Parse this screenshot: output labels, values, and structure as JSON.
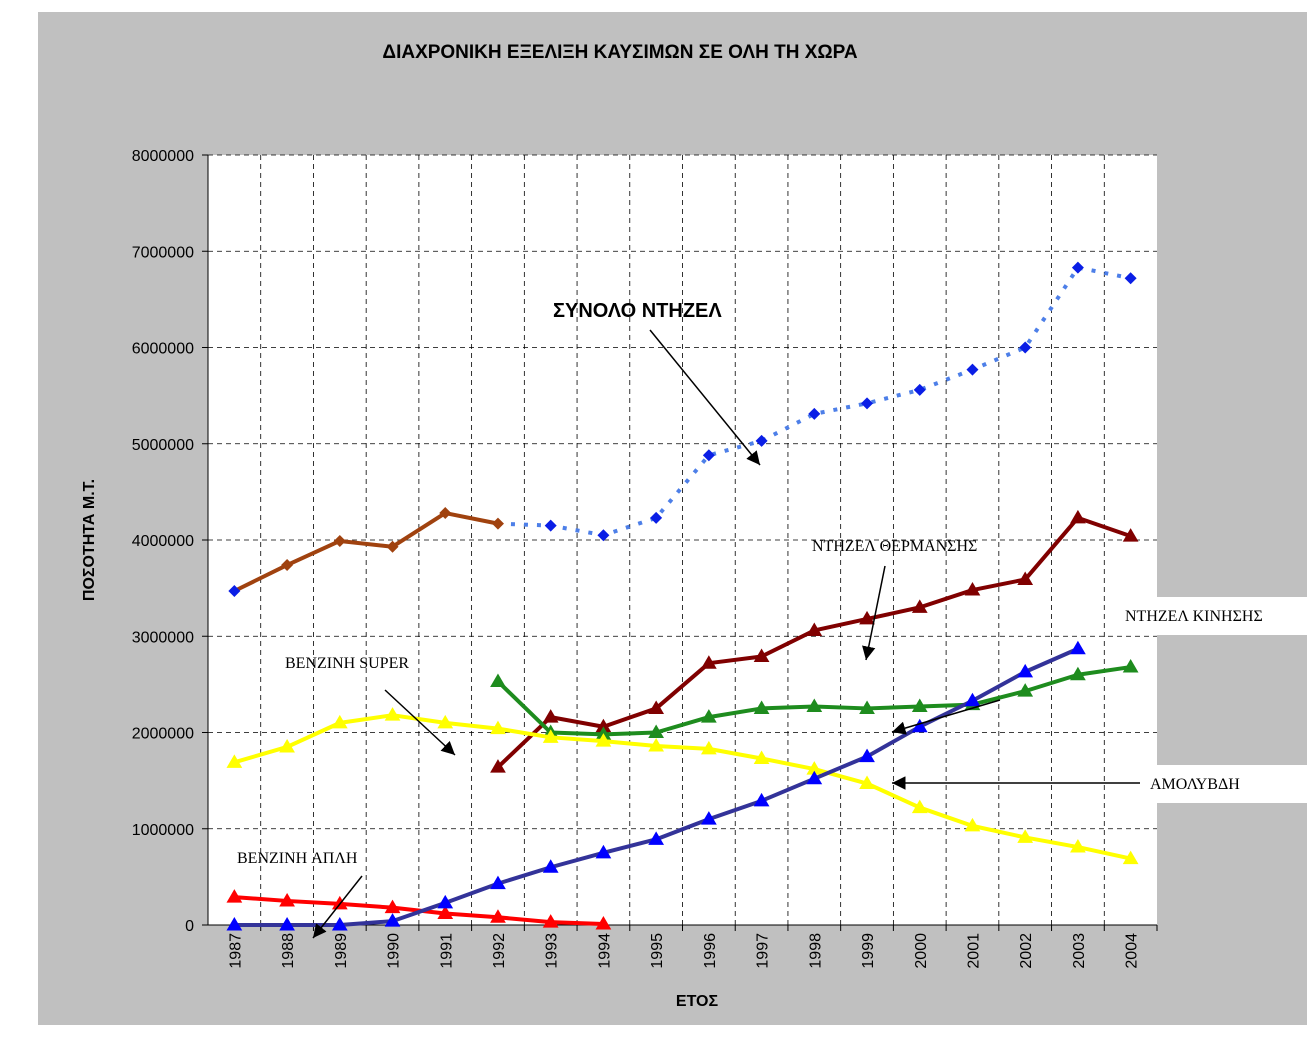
{
  "chart_data": {
    "type": "line",
    "title": "ΔΙΑΧΡΟΝΙΚΗ ΕΞΕΛΙΞΗ ΚΑΥΣΙΜΩΝ  ΣΕ ΟΛΗ ΤΗ ΧΩΡΑ",
    "x_label": "ΕΤΟΣ",
    "y_label": "ΠΟΣΟΤΗΤΑ Μ.Τ.",
    "categories": [
      "1987",
      "1988",
      "1989",
      "1990",
      "1991",
      "1992",
      "1993",
      "1994",
      "1995",
      "1996",
      "1997",
      "1998",
      "1999",
      "2000",
      "2001",
      "2002",
      "2003",
      "2004"
    ],
    "ylim": [
      0,
      8000000
    ],
    "yticks": [
      0,
      1000000,
      2000000,
      3000000,
      4000000,
      5000000,
      6000000,
      7000000,
      8000000
    ],
    "grid": true,
    "series": [
      {
        "color": "#a0420f",
        "color2": "#4d7fe8",
        "marker": "diamond",
        "marker_color2": "#0a1ee6",
        "style_change_index": 5,
        "values": [
          3470000,
          3740000,
          3990000,
          3930000,
          4280000,
          4170000,
          4150000,
          4050000,
          4230000,
          4880000,
          5030000,
          5310000,
          5420000,
          5560000,
          5770000,
          6000000,
          6830000,
          6720000
        ]
      },
      {
        "color": "#800000",
        "marker": "triangle",
        "values": [
          null,
          null,
          null,
          null,
          null,
          1640000,
          2160000,
          2060000,
          2250000,
          2720000,
          2790000,
          3060000,
          3180000,
          3300000,
          3480000,
          3590000,
          4230000,
          4040000
        ]
      },
      {
        "color": "#1e8c1e",
        "marker": "triangle",
        "values": [
          null,
          null,
          null,
          null,
          null,
          2530000,
          2000000,
          1980000,
          2000000,
          2160000,
          2250000,
          2270000,
          2250000,
          2270000,
          2290000,
          2430000,
          2600000,
          2680000
        ]
      },
      {
        "color": "#ffff00",
        "marker": "triangle",
        "values": [
          1690000,
          1850000,
          2100000,
          2180000,
          2100000,
          2040000,
          1950000,
          1910000,
          1860000,
          1830000,
          1730000,
          1620000,
          1470000,
          1220000,
          1030000,
          910000,
          810000,
          690000
        ]
      },
      {
        "color": "#ff0000",
        "marker": "triangle",
        "values": [
          290000,
          250000,
          220000,
          180000,
          120000,
          80000,
          30000,
          10000,
          null,
          null,
          null,
          null,
          null,
          null,
          null,
          null,
          null,
          null
        ]
      },
      {
        "color": "#333399",
        "marker": "triangle",
        "marker_color": "#0000ff",
        "values": [
          0,
          0,
          0,
          40000,
          230000,
          430000,
          600000,
          750000,
          890000,
          1100000,
          1290000,
          1520000,
          1750000,
          2060000,
          2330000,
          2630000,
          2870000,
          null
        ]
      }
    ],
    "annotations": [
      "ΣΥΝΟΛΟ  ΝΤΗΖΕΛ",
      "ΝΤΗΖΕΛ ΘΕΡΜΑΝΣΗΣ",
      "ΝΤΗΖΕΛ ΚΙΝΗΣΗΣ",
      "BENZINH SUPER",
      "ΑΜΟΛΥΒΔΗ",
      "BENZINH ΑΠΛΗ"
    ]
  }
}
